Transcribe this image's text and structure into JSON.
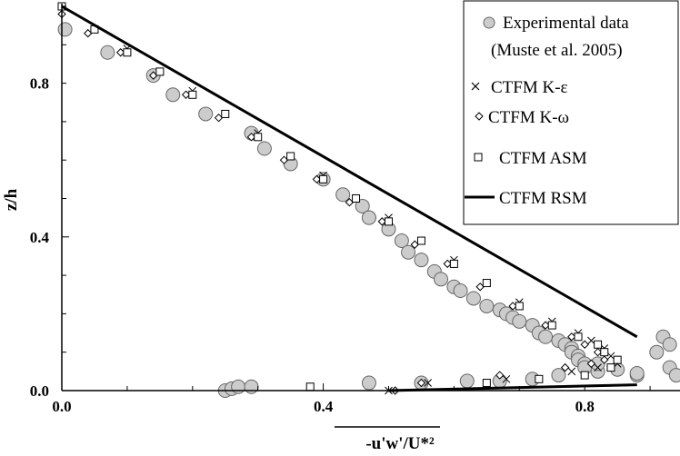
{
  "chart_data": {
    "type": "scatter",
    "title": "",
    "xlabel": "-u'w'/U*²",
    "ylabel": "z/h",
    "xlim": [
      0,
      1.0
    ],
    "ylim": [
      0,
      1.0
    ],
    "x_ticks": [
      "0.0",
      "0.4",
      "0.8"
    ],
    "y_ticks": [
      "0.0",
      "0.4",
      "0.8"
    ],
    "grid": false,
    "legend_placement": "top-right",
    "series": [
      {
        "name": "Experimental data (Muste et al. 2005)",
        "legend_lines": [
          "Experimental data",
          "(Muste et al. 2005)"
        ],
        "marker": "circle",
        "color": "#cccccc",
        "x": [
          0.005,
          0.07,
          0.14,
          0.17,
          0.22,
          0.29,
          0.31,
          0.35,
          0.4,
          0.43,
          0.46,
          0.47,
          0.47,
          0.5,
          0.52,
          0.53,
          0.55,
          0.57,
          0.58,
          0.6,
          0.61,
          0.63,
          0.65,
          0.67,
          0.68,
          0.69,
          0.7,
          0.72,
          0.73,
          0.74,
          0.76,
          0.77,
          0.78,
          0.78,
          0.79,
          0.79,
          0.8,
          0.8,
          0.82,
          0.88,
          0.91,
          0.92,
          0.93,
          0.93,
          0.94,
          0.96,
          0.97,
          0.25,
          0.26,
          0.27,
          0.29,
          0.47,
          0.55,
          0.62,
          0.67,
          0.72,
          0.76,
          0.82,
          0.85,
          0.88
        ],
        "y": [
          0.94,
          0.88,
          0.82,
          0.77,
          0.72,
          0.67,
          0.63,
          0.59,
          0.55,
          0.51,
          0.48,
          0.45,
          0.45,
          0.42,
          0.39,
          0.36,
          0.34,
          0.31,
          0.29,
          0.27,
          0.26,
          0.24,
          0.22,
          0.21,
          0.2,
          0.19,
          0.18,
          0.17,
          0.15,
          0.14,
          0.13,
          0.12,
          0.11,
          0.1,
          0.09,
          0.08,
          0.07,
          0.06,
          0.05,
          0.04,
          0.1,
          0.14,
          0.12,
          0.06,
          0.04,
          0.05,
          0.09,
          0.0,
          0.005,
          0.01,
          0.01,
          0.02,
          0.02,
          0.025,
          0.025,
          0.03,
          0.04,
          0.07,
          0.055,
          0.045
        ]
      },
      {
        "name": "CTFM K-ε",
        "marker": "x",
        "color": "#000000",
        "x": [
          0.0,
          0.05,
          0.1,
          0.15,
          0.2,
          0.25,
          0.3,
          0.35,
          0.4,
          0.45,
          0.5,
          0.55,
          0.6,
          0.65,
          0.7,
          0.75,
          0.79,
          0.81,
          0.83,
          0.84,
          0.85,
          0.82,
          0.78,
          0.68,
          0.56,
          0.5
        ],
        "y": [
          1.0,
          0.94,
          0.89,
          0.83,
          0.78,
          0.72,
          0.67,
          0.61,
          0.56,
          0.5,
          0.45,
          0.39,
          0.34,
          0.28,
          0.23,
          0.18,
          0.15,
          0.13,
          0.11,
          0.09,
          0.07,
          0.06,
          0.05,
          0.03,
          0.02,
          0.0
        ]
      },
      {
        "name": "CTFM K-ω",
        "marker": "diamond",
        "color": "#000000",
        "x": [
          0.0,
          0.04,
          0.09,
          0.14,
          0.19,
          0.24,
          0.29,
          0.34,
          0.39,
          0.44,
          0.49,
          0.54,
          0.59,
          0.64,
          0.69,
          0.74,
          0.78,
          0.8,
          0.82,
          0.83,
          0.81,
          0.77,
          0.67,
          0.55,
          0.51
        ],
        "y": [
          0.98,
          0.93,
          0.88,
          0.82,
          0.77,
          0.71,
          0.66,
          0.6,
          0.55,
          0.49,
          0.44,
          0.38,
          0.33,
          0.27,
          0.22,
          0.17,
          0.14,
          0.12,
          0.1,
          0.08,
          0.07,
          0.06,
          0.04,
          0.02,
          0.0
        ]
      },
      {
        "name": "CTFM ASM",
        "marker": "square",
        "color": "#000000",
        "x": [
          0.0,
          0.05,
          0.1,
          0.15,
          0.2,
          0.25,
          0.3,
          0.35,
          0.4,
          0.45,
          0.5,
          0.55,
          0.6,
          0.65,
          0.7,
          0.75,
          0.79,
          0.82,
          0.83,
          0.85,
          0.84,
          0.8,
          0.73,
          0.65,
          0.38
        ],
        "y": [
          1.0,
          0.94,
          0.88,
          0.83,
          0.77,
          0.72,
          0.66,
          0.61,
          0.55,
          0.5,
          0.44,
          0.39,
          0.33,
          0.28,
          0.22,
          0.17,
          0.14,
          0.12,
          0.1,
          0.08,
          0.06,
          0.04,
          0.03,
          0.02,
          0.01
        ]
      },
      {
        "name": "CTFM RSM",
        "marker": "line",
        "color": "#000000",
        "x": [
          0.0,
          0.88,
          0.5
        ],
        "y": [
          1.0,
          0.14,
          0.0
        ]
      }
    ]
  }
}
